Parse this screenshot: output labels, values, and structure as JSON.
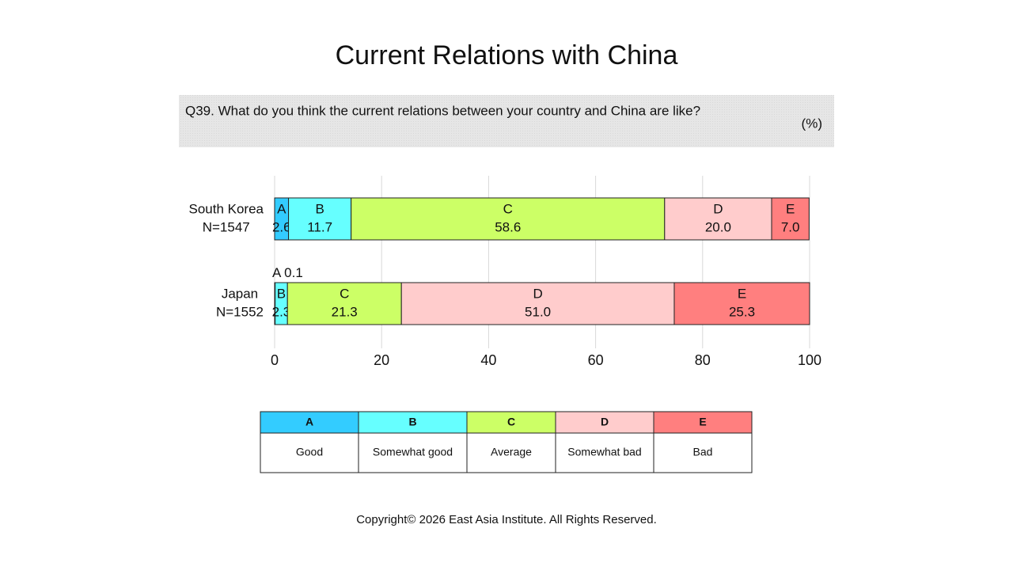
{
  "chart_data": {
    "type": "stacked-bar",
    "title": "Current Relations with China",
    "question": "Q39. What do you think the current relations between your country and China are like?",
    "unit": "(%)",
    "categories": [
      "South Korea",
      "Japan"
    ],
    "sample_sizes": [
      "N=1547",
      "N=1552"
    ],
    "series": [
      {
        "name": "A",
        "description": "Good",
        "color": "#33ccff",
        "values": [
          2.6,
          0.1
        ],
        "value_labels": [
          "2.6",
          "0.1"
        ]
      },
      {
        "name": "B",
        "description": "Somewhat good",
        "color": "#66ffff",
        "values": [
          11.7,
          2.3
        ],
        "value_labels": [
          "11.7",
          "2.3"
        ]
      },
      {
        "name": "C",
        "description": "Average",
        "color": "#ccff66",
        "values": [
          58.6,
          21.3
        ],
        "value_labels": [
          "58.6",
          "21.3"
        ]
      },
      {
        "name": "D",
        "description": "Somewhat bad",
        "color": "#ffcccc",
        "values": [
          20.0,
          51.0
        ],
        "value_labels": [
          "20.0",
          "51.0"
        ]
      },
      {
        "name": "E",
        "description": "Bad",
        "color": "#ff7f7f",
        "values": [
          7.0,
          25.3
        ],
        "value_labels": [
          "7.0",
          "25.3"
        ]
      }
    ],
    "xlim": [
      0,
      100
    ],
    "xticks": [
      0,
      20,
      40,
      60,
      80,
      100
    ],
    "grid": true,
    "footer": "Copyright© 2026 East Asia Institute. All Rights Reserved."
  }
}
